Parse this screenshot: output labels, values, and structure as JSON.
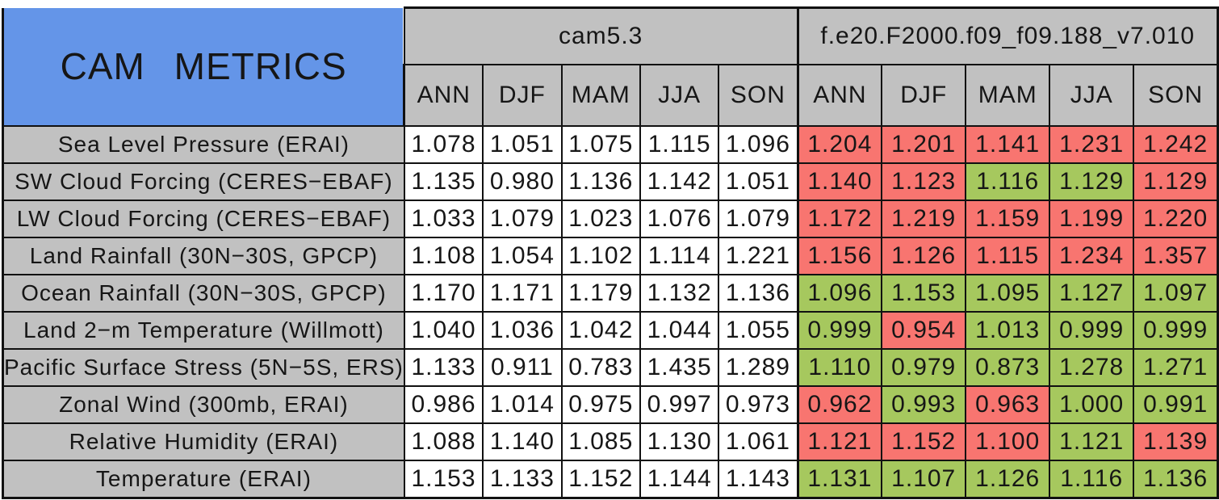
{
  "colors": {
    "header_bg": "#C1C1C1",
    "title_bg": "#6495E8",
    "better_bg": "#A6C85E",
    "worse_bg": "#F87570"
  },
  "chart_data": {
    "type": "table",
    "title": "CAM METRICS",
    "column_groups": [
      {
        "name": "cam5.3"
      },
      {
        "name": "f.e20.F2000.f09_f09.188_v7.010"
      }
    ],
    "seasons": [
      "ANN",
      "DJF",
      "MAM",
      "JJA",
      "SON"
    ],
    "rows": [
      {
        "label": "Sea Level Pressure (ERAI)",
        "control": [
          "1.078",
          "1.051",
          "1.075",
          "1.115",
          "1.096"
        ],
        "test": [
          "1.204",
          "1.201",
          "1.141",
          "1.231",
          "1.242"
        ],
        "flags": [
          "worse",
          "worse",
          "worse",
          "worse",
          "worse"
        ]
      },
      {
        "label": "SW Cloud Forcing (CERES−EBAF)",
        "control": [
          "1.135",
          "0.980",
          "1.136",
          "1.142",
          "1.051"
        ],
        "test": [
          "1.140",
          "1.123",
          "1.116",
          "1.129",
          "1.129"
        ],
        "flags": [
          "worse",
          "worse",
          "better",
          "better",
          "worse"
        ]
      },
      {
        "label": "LW Cloud Forcing (CERES−EBAF)",
        "control": [
          "1.033",
          "1.079",
          "1.023",
          "1.076",
          "1.079"
        ],
        "test": [
          "1.172",
          "1.219",
          "1.159",
          "1.199",
          "1.220"
        ],
        "flags": [
          "worse",
          "worse",
          "worse",
          "worse",
          "worse"
        ]
      },
      {
        "label": "Land Rainfall (30N−30S, GPCP)",
        "control": [
          "1.108",
          "1.054",
          "1.102",
          "1.114",
          "1.221"
        ],
        "test": [
          "1.156",
          "1.126",
          "1.115",
          "1.234",
          "1.357"
        ],
        "flags": [
          "worse",
          "worse",
          "worse",
          "worse",
          "worse"
        ]
      },
      {
        "label": "Ocean Rainfall (30N−30S, GPCP)",
        "control": [
          "1.170",
          "1.171",
          "1.179",
          "1.132",
          "1.136"
        ],
        "test": [
          "1.096",
          "1.153",
          "1.095",
          "1.127",
          "1.097"
        ],
        "flags": [
          "better",
          "better",
          "better",
          "better",
          "better"
        ]
      },
      {
        "label": "Land 2−m Temperature (Willmott)",
        "control": [
          "1.040",
          "1.036",
          "1.042",
          "1.044",
          "1.055"
        ],
        "test": [
          "0.999",
          "0.954",
          "1.013",
          "0.999",
          "0.999"
        ],
        "flags": [
          "better",
          "worse",
          "better",
          "better",
          "better"
        ]
      },
      {
        "label": "Pacific Surface Stress (5N−5S, ERS)",
        "control": [
          "1.133",
          "0.911",
          "0.783",
          "1.435",
          "1.289"
        ],
        "test": [
          "1.110",
          "0.979",
          "0.873",
          "1.278",
          "1.271"
        ],
        "flags": [
          "better",
          "better",
          "better",
          "better",
          "better"
        ]
      },
      {
        "label": "Zonal Wind (300mb, ERAI)",
        "control": [
          "0.986",
          "1.014",
          "0.975",
          "0.997",
          "0.973"
        ],
        "test": [
          "0.962",
          "0.993",
          "0.963",
          "1.000",
          "0.991"
        ],
        "flags": [
          "worse",
          "better",
          "worse",
          "better",
          "better"
        ]
      },
      {
        "label": "Relative Humidity (ERAI)",
        "control": [
          "1.088",
          "1.140",
          "1.085",
          "1.130",
          "1.061"
        ],
        "test": [
          "1.121",
          "1.152",
          "1.100",
          "1.121",
          "1.139"
        ],
        "flags": [
          "worse",
          "worse",
          "worse",
          "better",
          "worse"
        ]
      },
      {
        "label": "Temperature (ERAI)",
        "control": [
          "1.153",
          "1.133",
          "1.152",
          "1.144",
          "1.143"
        ],
        "test": [
          "1.131",
          "1.107",
          "1.126",
          "1.116",
          "1.136"
        ],
        "flags": [
          "better",
          "better",
          "better",
          "better",
          "better"
        ]
      }
    ]
  }
}
